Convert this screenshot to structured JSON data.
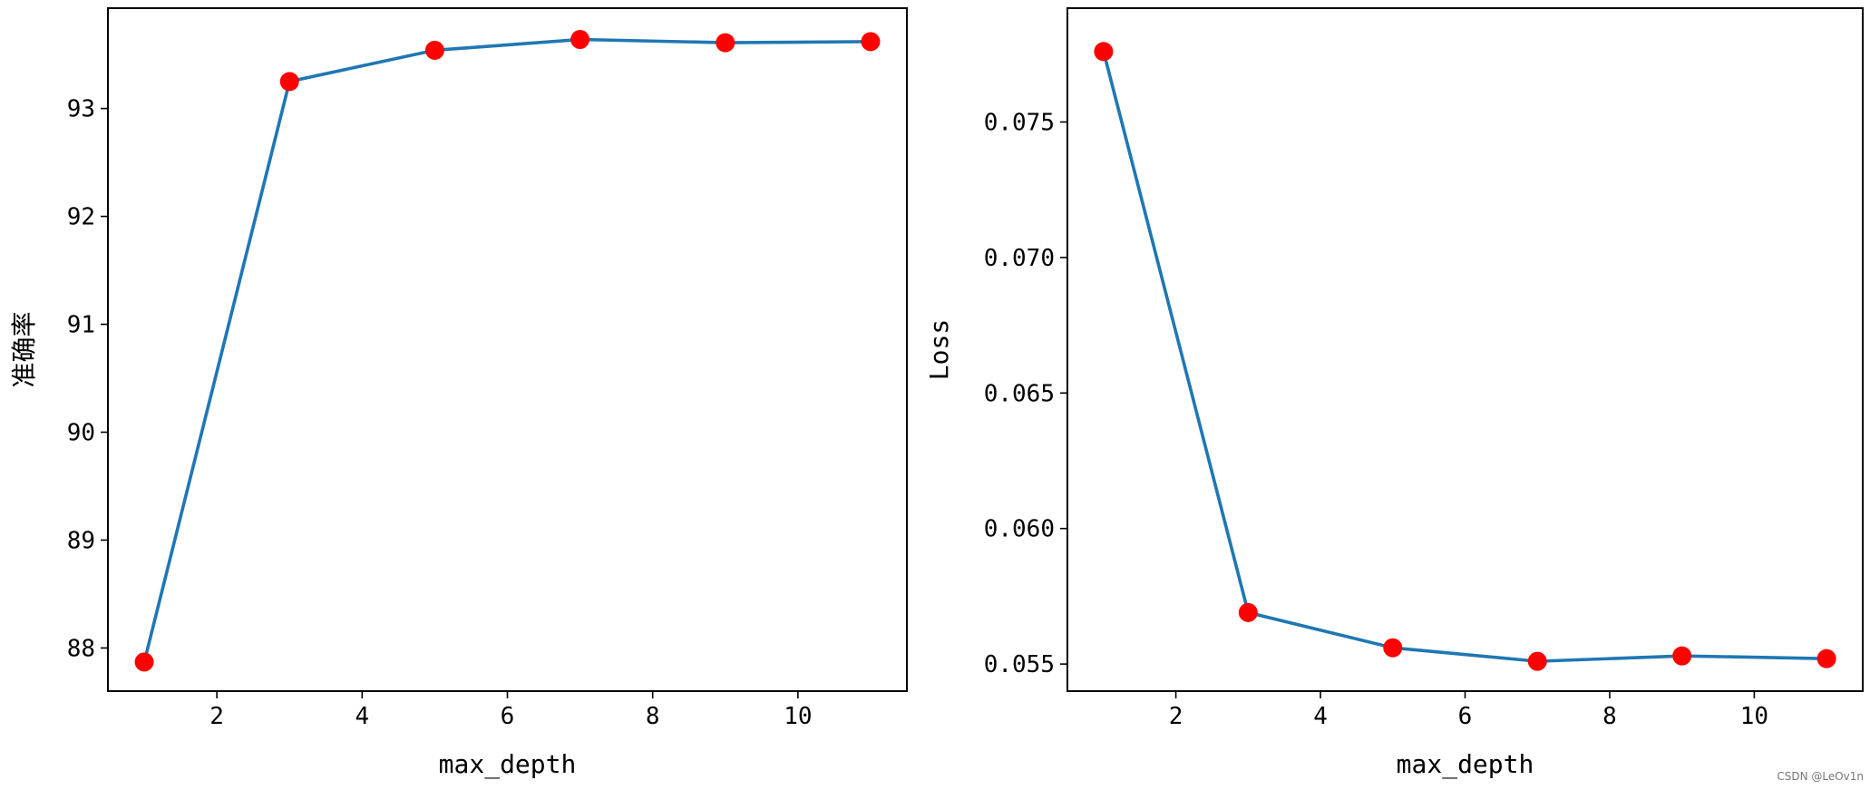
{
  "chart_data": [
    {
      "type": "line",
      "xlabel": "max_depth",
      "ylabel": "准确率",
      "x": [
        1,
        3,
        5,
        7,
        9,
        11
      ],
      "series": [
        {
          "values": [
            87.87,
            93.25,
            93.54,
            93.64,
            93.61,
            93.62
          ],
          "color": "#1f77b4",
          "marker_color": "#ff0000"
        }
      ],
      "xlim": [
        0.5,
        11.5
      ],
      "ylim": [
        87.6,
        93.93
      ],
      "xticks": [
        2,
        4,
        6,
        8,
        10
      ],
      "yticks": [
        88,
        89,
        90,
        91,
        92,
        93
      ],
      "ytick_labels": [
        "88",
        "89",
        "90",
        "91",
        "92",
        "93"
      ],
      "grid": false
    },
    {
      "type": "line",
      "xlabel": "max_depth",
      "ylabel": "Loss",
      "x": [
        1,
        3,
        5,
        7,
        9,
        11
      ],
      "series": [
        {
          "values": [
            0.0776,
            0.0569,
            0.0556,
            0.0551,
            0.0553,
            0.0552
          ],
          "color": "#1f77b4",
          "marker_color": "#ff0000"
        }
      ],
      "xlim": [
        0.5,
        11.5
      ],
      "ylim": [
        0.054,
        0.0792
      ],
      "xticks": [
        2,
        4,
        6,
        8,
        10
      ],
      "yticks": [
        0.055,
        0.06,
        0.065,
        0.07,
        0.075
      ],
      "ytick_labels": [
        "0.055",
        "0.060",
        "0.065",
        "0.070",
        "0.075"
      ],
      "grid": false
    }
  ],
  "watermark": "CSDN @LeOv1n"
}
